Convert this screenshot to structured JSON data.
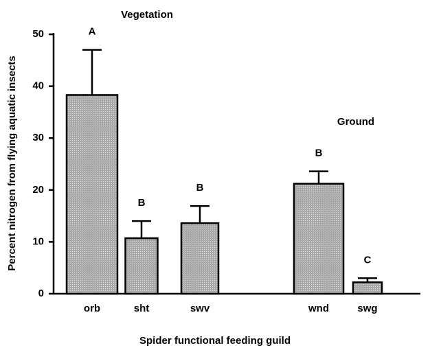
{
  "chart_data": {
    "type": "bar",
    "xlabel": "Spider functional feeding guild",
    "ylabel": "Percent nitrogen from flying aquatic insects",
    "groups": [
      "Vegetation",
      "Ground"
    ],
    "categories": [
      "orb",
      "sht",
      "swv",
      "wnd",
      "swg"
    ],
    "values": [
      38.3,
      10.7,
      13.6,
      21.2,
      2.2
    ],
    "errors": [
      8.7,
      3.3,
      3.3,
      2.4,
      0.8
    ],
    "annotations": [
      "A",
      "B",
      "B",
      "B",
      "C"
    ],
    "color": "#a9a9a9",
    "ylim": [
      0,
      50
    ],
    "yticks": [
      0,
      10,
      20,
      30,
      40,
      50
    ]
  }
}
